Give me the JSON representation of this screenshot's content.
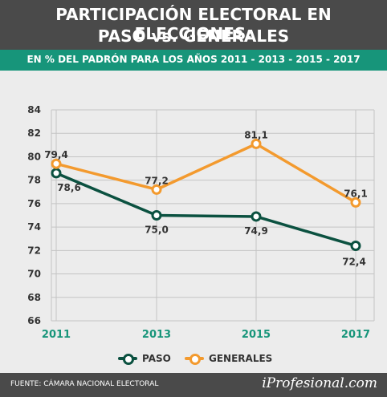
{
  "header": {
    "title_line1": "PARTICIPACIÓN ELECTORAL EN ELECCIONES:",
    "title_line2": "PASO vs. GENERALES",
    "subtitle": "EN % DEL PADRÓN PARA LOS AÑOS 2011 - 2013 - 2015 - 2017"
  },
  "footer": {
    "source": "FUENTE: CÁMARA NACIONAL ELECTORAL",
    "brand": "iProfesional.com"
  },
  "colors": {
    "header_bg": "#4a4a4a",
    "subtitle_bg": "#17957a",
    "background": "#ececec",
    "paso": "#0b5140",
    "generales": "#f39a2e",
    "year_labels": "#17957a"
  },
  "chart_data": {
    "type": "line",
    "title": "PARTICIPACIÓN ELECTORAL EN ELECCIONES: PASO vs. GENERALES",
    "subtitle": "EN % DEL PADRÓN PARA LOS AÑOS 2011 - 2013 - 2015 - 2017",
    "categories": [
      "2011",
      "2013",
      "2015",
      "2017"
    ],
    "series": [
      {
        "name": "PASO",
        "values": [
          78.6,
          75.0,
          74.9,
          72.4
        ],
        "labels": [
          "78,6",
          "75,0",
          "74,9",
          "72,4"
        ],
        "color": "#0b5140"
      },
      {
        "name": "GENERALES",
        "values": [
          79.4,
          77.2,
          81.1,
          76.1
        ],
        "labels": [
          "79,4",
          "77,2",
          "81,1",
          "76,1"
        ],
        "color": "#f39a2e"
      }
    ],
    "yticks": [
      "66",
      "68",
      "70",
      "72",
      "74",
      "76",
      "78",
      "80",
      "82",
      "84"
    ],
    "ylim": [
      66,
      84
    ],
    "grid": true,
    "legend": "bottom"
  }
}
